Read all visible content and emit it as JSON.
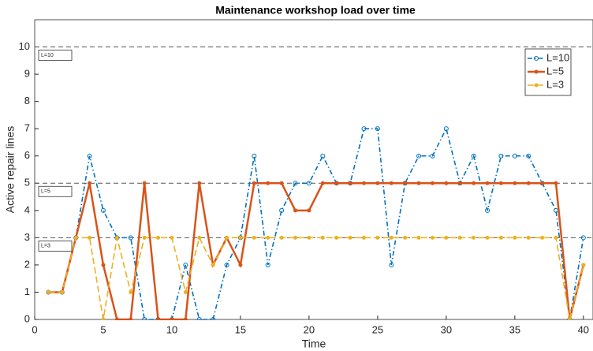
{
  "chart_data": {
    "type": "line",
    "title": "Maintenance workshop load over time",
    "x_label": "Time",
    "y_label": "Active repair lines",
    "x": [
      1,
      2,
      3,
      4,
      5,
      6,
      7,
      8,
      9,
      10,
      11,
      12,
      13,
      14,
      15,
      16,
      17,
      18,
      19,
      20,
      21,
      22,
      23,
      24,
      25,
      26,
      27,
      28,
      29,
      30,
      31,
      32,
      33,
      34,
      35,
      36,
      37,
      38,
      39,
      40
    ],
    "series": [
      {
        "name": "L=10",
        "color": "#0072bd",
        "style": "dashdot",
        "marker": "circle",
        "values": [
          1,
          1,
          3,
          6,
          4,
          3,
          3,
          0,
          0,
          0,
          2,
          0,
          0,
          2,
          3,
          6,
          2,
          4,
          5,
          5,
          6,
          5,
          5,
          7,
          7,
          2,
          5,
          6,
          6,
          7,
          5,
          6,
          4,
          6,
          6,
          6,
          5,
          4,
          0,
          3
        ]
      },
      {
        "name": "L=5",
        "color": "#d95319",
        "style": "solid",
        "marker": "dot",
        "values": [
          1,
          1,
          3,
          5,
          2,
          0,
          0,
          5,
          0,
          0,
          0,
          5,
          2,
          3,
          2,
          5,
          5,
          5,
          4,
          4,
          5,
          5,
          5,
          5,
          5,
          5,
          5,
          5,
          5,
          5,
          5,
          5,
          5,
          5,
          5,
          5,
          5,
          5,
          0,
          2
        ]
      },
      {
        "name": "L=3",
        "color": "#edb120",
        "style": "dashed",
        "marker": "dot",
        "values": [
          1,
          1,
          3,
          3,
          0,
          3,
          1,
          3,
          3,
          3,
          1,
          3,
          2,
          3,
          3,
          3,
          3,
          3,
          3,
          3,
          3,
          3,
          3,
          3,
          3,
          3,
          3,
          3,
          3,
          3,
          3,
          3,
          3,
          3,
          3,
          3,
          3,
          3,
          0,
          2
        ]
      }
    ],
    "reference_lines": [
      {
        "value": 10,
        "label": "L=10"
      },
      {
        "value": 5,
        "label": "L=5"
      },
      {
        "value": 3,
        "label": "L=3"
      }
    ],
    "xlim": [
      0,
      40.7
    ],
    "xticks": [
      0,
      5,
      10,
      15,
      20,
      25,
      30,
      35,
      40
    ],
    "ylim": [
      0,
      11
    ],
    "yticks": [
      0,
      1,
      2,
      3,
      4,
      5,
      6,
      7,
      8,
      9,
      10
    ],
    "legend": "top-right"
  }
}
